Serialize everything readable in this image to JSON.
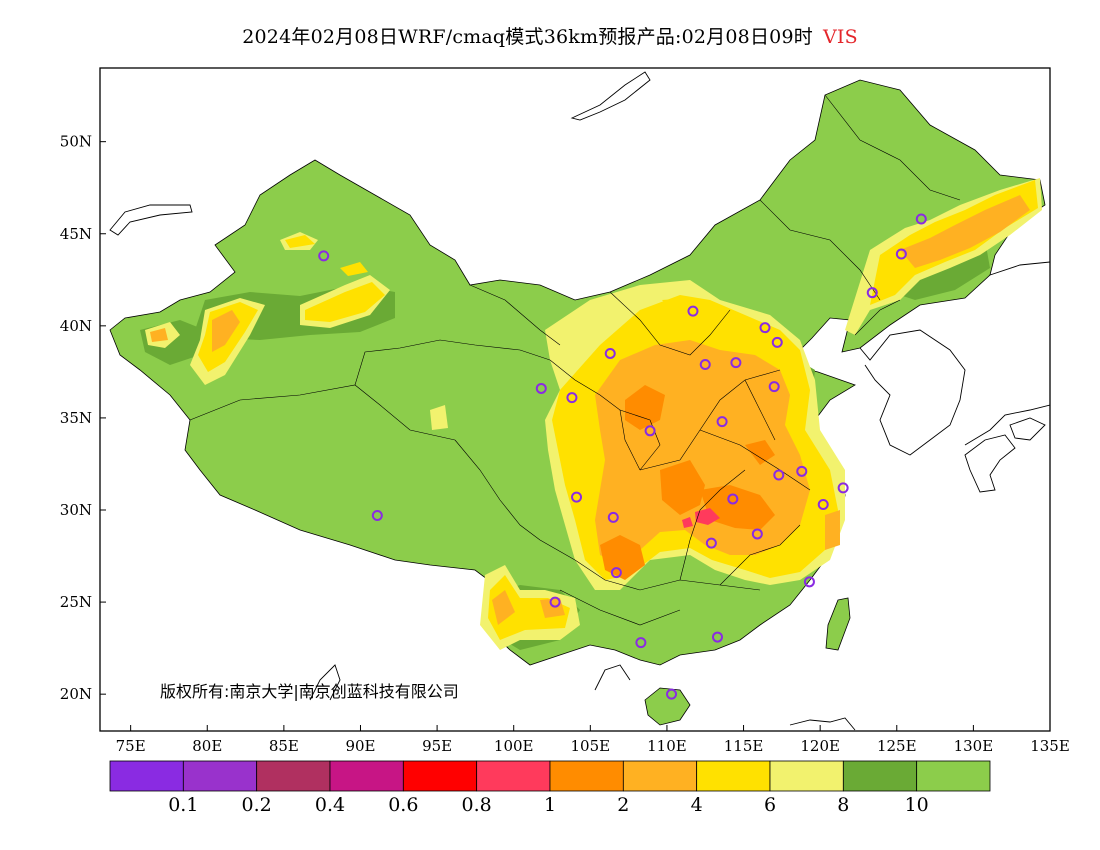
{
  "title": {
    "main": "2024年02月08日WRF/cmaq模式36km预报产品:02月08日09时",
    "variable": "VIS"
  },
  "map": {
    "x_axis": {
      "labels": [
        "75E",
        "80E",
        "85E",
        "90E",
        "95E",
        "100E",
        "105E",
        "110E",
        "115E",
        "120E",
        "125E",
        "130E",
        "135E"
      ],
      "lon_range": [
        73,
        135
      ]
    },
    "y_axis": {
      "labels": [
        "50N",
        "45N",
        "40N",
        "35N",
        "30N",
        "25N",
        "20N"
      ],
      "lat_range": [
        18,
        54
      ]
    },
    "copyright": "版权所有:南京大学|南京创蓝科技有限公司",
    "stations": [
      {
        "lon": 87.6,
        "lat": 43.8
      },
      {
        "lon": 91.1,
        "lat": 29.7
      },
      {
        "lon": 101.8,
        "lat": 36.6
      },
      {
        "lon": 103.8,
        "lat": 36.1
      },
      {
        "lon": 106.3,
        "lat": 38.5
      },
      {
        "lon": 108.9,
        "lat": 34.3
      },
      {
        "lon": 104.1,
        "lat": 30.7
      },
      {
        "lon": 106.5,
        "lat": 29.6
      },
      {
        "lon": 106.7,
        "lat": 26.6
      },
      {
        "lon": 102.7,
        "lat": 25.0
      },
      {
        "lon": 108.3,
        "lat": 22.8
      },
      {
        "lon": 110.3,
        "lat": 20.0
      },
      {
        "lon": 113.3,
        "lat": 23.1
      },
      {
        "lon": 112.9,
        "lat": 28.2
      },
      {
        "lon": 114.3,
        "lat": 30.6
      },
      {
        "lon": 115.9,
        "lat": 28.7
      },
      {
        "lon": 119.3,
        "lat": 26.1
      },
      {
        "lon": 120.2,
        "lat": 30.3
      },
      {
        "lon": 121.5,
        "lat": 31.2
      },
      {
        "lon": 118.8,
        "lat": 32.1
      },
      {
        "lon": 117.3,
        "lat": 31.9
      },
      {
        "lon": 113.6,
        "lat": 34.8
      },
      {
        "lon": 117.0,
        "lat": 36.7
      },
      {
        "lon": 114.5,
        "lat": 38.0
      },
      {
        "lon": 112.5,
        "lat": 37.9
      },
      {
        "lon": 116.4,
        "lat": 39.9
      },
      {
        "lon": 117.2,
        "lat": 39.1
      },
      {
        "lon": 111.7,
        "lat": 40.8
      },
      {
        "lon": 123.4,
        "lat": 41.8
      },
      {
        "lon": 125.3,
        "lat": 43.9
      },
      {
        "lon": 126.6,
        "lat": 45.8
      }
    ]
  },
  "legend": {
    "colors": [
      "#8a2be2",
      "#9932cc",
      "#b03060",
      "#c71585",
      "#ff0000",
      "#ff3a5c",
      "#ff8c00",
      "#ffb122",
      "#ffe100",
      "#f2f26e",
      "#6aaa35",
      "#8ccd4b"
    ],
    "labels": [
      "0.1",
      "0.2",
      "0.4",
      "0.6",
      "0.8",
      "1",
      "2",
      "4",
      "6",
      "8",
      "10"
    ]
  }
}
